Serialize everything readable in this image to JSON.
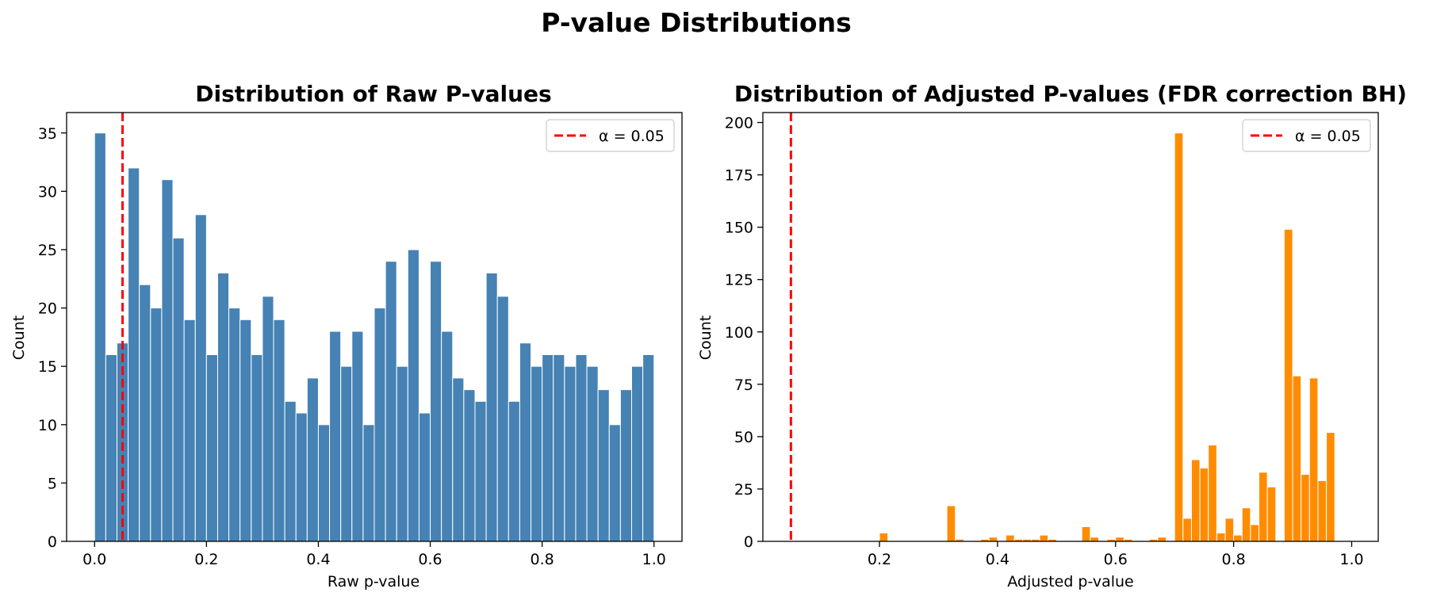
{
  "figure": {
    "title": "P-value Distributions"
  },
  "chart_data": [
    {
      "type": "bar",
      "title": "Distribution of Raw P-values",
      "xlabel": "Raw p-value",
      "ylabel": "Count",
      "color": "#4682b4",
      "xlim": [
        -0.05,
        1.05
      ],
      "ylim": [
        0,
        36.75
      ],
      "xticks": [
        0.0,
        0.2,
        0.4,
        0.6,
        0.8,
        1.0
      ],
      "xtick_labels": [
        "0.0",
        "0.2",
        "0.4",
        "0.6",
        "0.8",
        "1.0"
      ],
      "yticks": [
        0,
        5,
        10,
        15,
        20,
        25,
        30,
        35
      ],
      "ytick_labels": [
        "0",
        "5",
        "10",
        "15",
        "20",
        "25",
        "30",
        "35"
      ],
      "bin_edges_range": [
        0.0,
        1.0
      ],
      "bins": 50,
      "values": [
        35,
        16,
        17,
        32,
        22,
        20,
        31,
        26,
        19,
        28,
        16,
        23,
        20,
        19,
        16,
        21,
        19,
        12,
        11,
        14,
        10,
        18,
        15,
        18,
        10,
        20,
        24,
        15,
        25,
        11,
        24,
        18,
        14,
        13,
        12,
        23,
        21,
        12,
        17,
        15,
        16,
        16,
        15,
        16,
        15,
        13,
        10,
        13,
        15,
        16
      ],
      "threshold": {
        "x": 0.05,
        "color": "#ff0000",
        "label": "α = 0.05"
      },
      "legend": "top-right",
      "grid": false
    },
    {
      "type": "bar",
      "title": "Distribution of Adjusted P-values (FDR correction BH)",
      "xlabel": "Adjusted p-value",
      "ylabel": "Count",
      "color": "#ff8c00",
      "xlim": [
        0.0025,
        1.045
      ],
      "ylim": [
        0,
        204.75
      ],
      "xticks": [
        0.2,
        0.4,
        0.6,
        0.8,
        1.0
      ],
      "xtick_labels": [
        "0.2",
        "0.4",
        "0.6",
        "0.8",
        "1.0"
      ],
      "yticks": [
        0,
        25,
        50,
        75,
        100,
        125,
        150,
        175,
        200
      ],
      "ytick_labels": [
        "0",
        "25",
        "50",
        "75",
        "100",
        "125",
        "150",
        "175",
        "200"
      ],
      "bin_edges_range": [
        0.0,
        1.0
      ],
      "bins": 70,
      "values": [
        0,
        0,
        0,
        0,
        0,
        0,
        0,
        0,
        0,
        0,
        0,
        0,
        0,
        0,
        4,
        0,
        0,
        0,
        0,
        0,
        0,
        0,
        17,
        1,
        0,
        0,
        1,
        2,
        0,
        3,
        1,
        1,
        1,
        3,
        1,
        0,
        0,
        0,
        7,
        2,
        0,
        1,
        2,
        1,
        0,
        0,
        1,
        2,
        0,
        195,
        11,
        39,
        35,
        46,
        4,
        11,
        3,
        16,
        8,
        33,
        26,
        0,
        149,
        79,
        32,
        78,
        29,
        52,
        0,
        0
      ],
      "threshold": {
        "x": 0.05,
        "color": "#ff0000",
        "label": "α = 0.05"
      },
      "legend": "top-right",
      "grid": false
    }
  ]
}
